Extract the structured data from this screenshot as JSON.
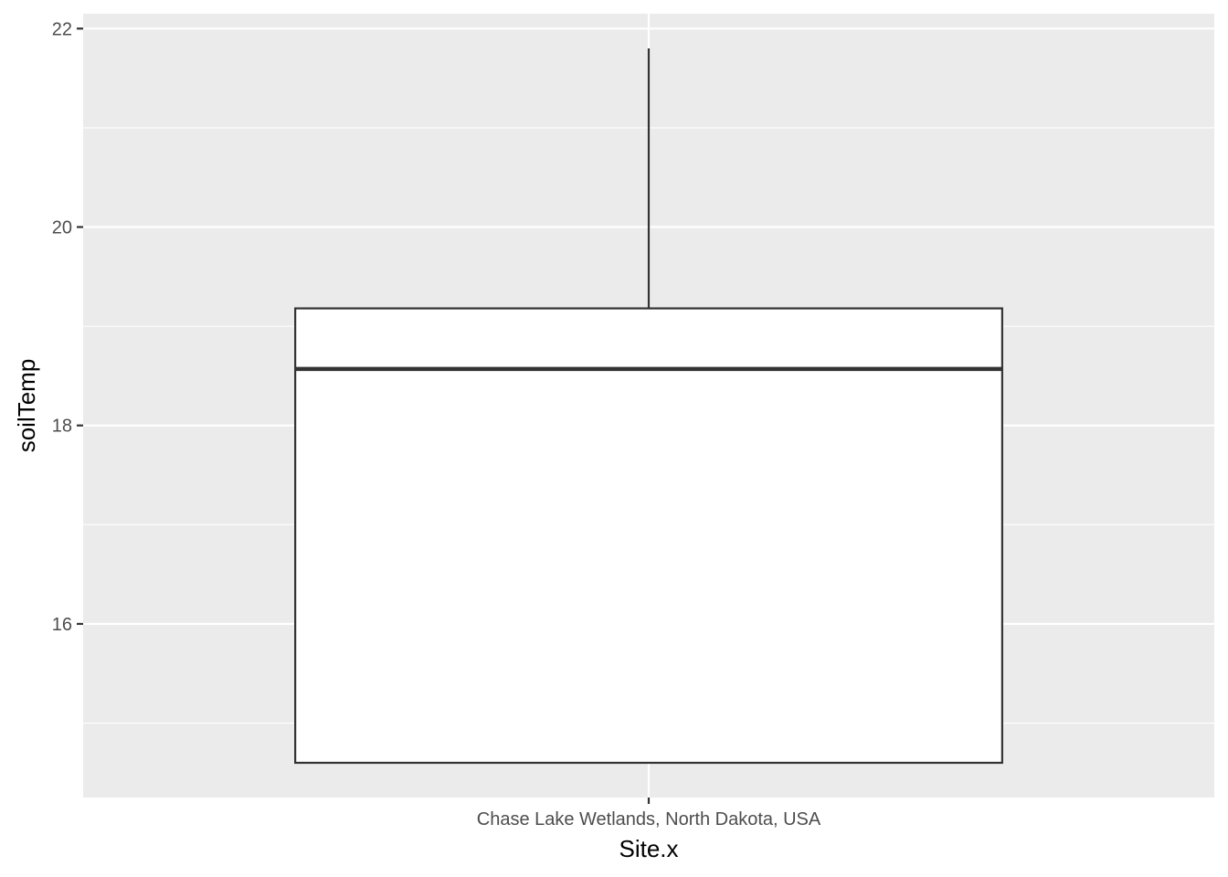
{
  "chart_data": {
    "type": "boxplot",
    "title": "",
    "xlabel": "Site.x",
    "ylabel": "soilTemp",
    "categories": [
      "Chase Lake Wetlands, North Dakota, USA"
    ],
    "boxes": [
      {
        "category": "Chase Lake Wetlands, North Dakota, USA",
        "min": 14.6,
        "q1": 14.6,
        "median": 18.57,
        "q3": 19.18,
        "max": 21.8
      }
    ],
    "ylim": [
      14.25,
      22.15
    ],
    "yticks": [
      16,
      18,
      20,
      22
    ],
    "grid": true,
    "colors": {
      "panel_background": "#ebebeb",
      "grid_line": "#ffffff",
      "box_fill": "#ffffff",
      "box_stroke": "#333333",
      "tick_mark": "#333333"
    }
  }
}
